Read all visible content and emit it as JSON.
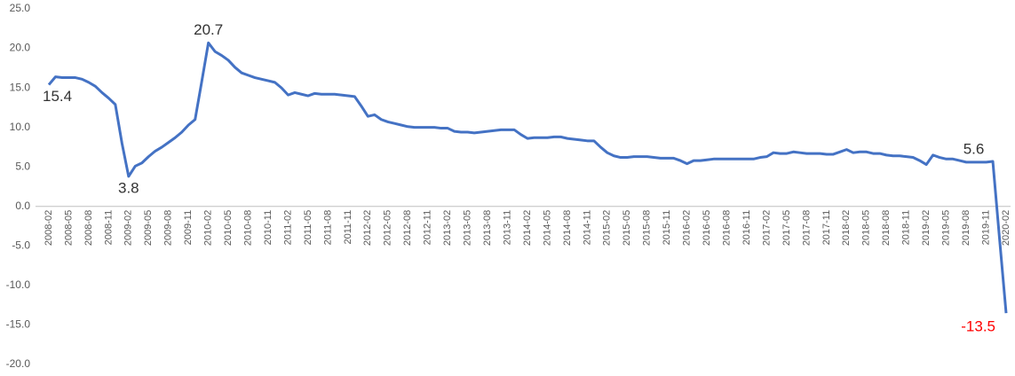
{
  "chart_data": {
    "type": "line",
    "categories": [
      "2008-02",
      null,
      null,
      "2008-05",
      null,
      null,
      "2008-08",
      null,
      null,
      "2008-11",
      null,
      null,
      "2009-02",
      null,
      null,
      "2009-05",
      null,
      null,
      "2009-08",
      null,
      null,
      "2009-11",
      null,
      null,
      "2010-02",
      null,
      null,
      "2010-05",
      null,
      null,
      "2010-08",
      null,
      null,
      "2010-11",
      null,
      null,
      "2011-02",
      null,
      null,
      "2011-05",
      null,
      null,
      "2011-08",
      null,
      null,
      "2011-11",
      null,
      null,
      "2012-02",
      null,
      null,
      "2012-05",
      null,
      null,
      "2012-08",
      null,
      null,
      "2012-11",
      null,
      null,
      "2013-02",
      null,
      null,
      "2013-05",
      null,
      null,
      "2013-08",
      null,
      null,
      "2013-11",
      null,
      null,
      "2014-02",
      null,
      null,
      "2014-05",
      null,
      null,
      "2014-08",
      null,
      null,
      "2014-11",
      null,
      null,
      "2015-02",
      null,
      null,
      "2015-05",
      null,
      null,
      "2015-08",
      null,
      null,
      "2015-11",
      null,
      null,
      "2016-02",
      null,
      null,
      "2016-05",
      null,
      null,
      "2016-08",
      null,
      null,
      "2016-11",
      null,
      null,
      "2017-02",
      null,
      null,
      "2017-05",
      null,
      null,
      "2017-08",
      null,
      null,
      "2017-11",
      null,
      null,
      "2018-02",
      null,
      null,
      "2018-05",
      null,
      null,
      "2018-08",
      null,
      null,
      "2018-11",
      null,
      null,
      "2019-02",
      null,
      null,
      "2019-05",
      null,
      null,
      "2019-08",
      null,
      null,
      "2019-11",
      null,
      null,
      "2020-02"
    ],
    "series": [
      {
        "color": "#4472c4",
        "values": [
          15.4,
          16.4,
          16.3,
          16.3,
          16.3,
          16.1,
          15.7,
          15.2,
          14.4,
          13.7,
          12.9,
          8.0,
          3.8,
          5.1,
          5.5,
          6.3,
          7.0,
          7.5,
          8.1,
          8.7,
          9.4,
          10.3,
          11.0,
          15.8,
          20.7,
          19.6,
          19.1,
          18.5,
          17.6,
          16.9,
          16.6,
          16.3,
          16.1,
          15.9,
          15.7,
          15.0,
          14.1,
          14.4,
          14.2,
          14.0,
          14.3,
          14.2,
          14.2,
          14.2,
          14.1,
          14.0,
          13.9,
          12.7,
          11.4,
          11.6,
          11.0,
          10.7,
          10.5,
          10.3,
          10.1,
          10.0,
          10.0,
          10.0,
          10.0,
          9.9,
          9.9,
          9.5,
          9.4,
          9.4,
          9.3,
          9.4,
          9.5,
          9.6,
          9.7,
          9.7,
          9.7,
          9.1,
          8.6,
          8.7,
          8.7,
          8.7,
          8.8,
          8.8,
          8.6,
          8.5,
          8.4,
          8.3,
          8.3,
          7.5,
          6.8,
          6.4,
          6.2,
          6.2,
          6.3,
          6.3,
          6.3,
          6.2,
          6.1,
          6.1,
          6.1,
          5.8,
          5.4,
          5.8,
          5.8,
          5.9,
          6.0,
          6.0,
          6.0,
          6.0,
          6.0,
          6.0,
          6.0,
          6.2,
          6.3,
          6.8,
          6.7,
          6.7,
          6.9,
          6.8,
          6.7,
          6.7,
          6.7,
          6.6,
          6.6,
          6.9,
          7.2,
          6.8,
          6.9,
          6.9,
          6.7,
          6.7,
          6.5,
          6.4,
          6.4,
          6.3,
          6.2,
          5.8,
          5.3,
          6.5,
          6.2,
          6.0,
          6.0,
          5.8,
          5.6,
          5.6,
          5.6,
          5.6,
          5.7,
          -4.0,
          -13.5
        ]
      }
    ],
    "data_labels": [
      {
        "x": "2008-02",
        "color": "#333333"
      },
      {
        "x": "2009-02",
        "color": "#333333"
      },
      {
        "x": "2010-02",
        "color": "#333333"
      },
      {
        "x": "2019-11",
        "color": "#333333"
      },
      {
        "x": "2020-02",
        "color": "#ff0000"
      }
    ],
    "ylim": [
      -20,
      25
    ],
    "yticks": [
      {
        "value": -20,
        "label": "-20.0"
      },
      {
        "value": -15,
        "label": "-15.0"
      },
      {
        "value": -10,
        "label": "-10.0"
      },
      {
        "value": -5,
        "label": "-5.0"
      },
      {
        "value": 0,
        "label": "0.0"
      },
      {
        "value": 5,
        "label": "5.0"
      },
      {
        "value": 10,
        "label": "10.0"
      },
      {
        "value": 15,
        "label": "15.0"
      },
      {
        "value": 20,
        "label": "20.0"
      },
      {
        "value": 25,
        "label": "25.0"
      }
    ],
    "grid": false
  }
}
